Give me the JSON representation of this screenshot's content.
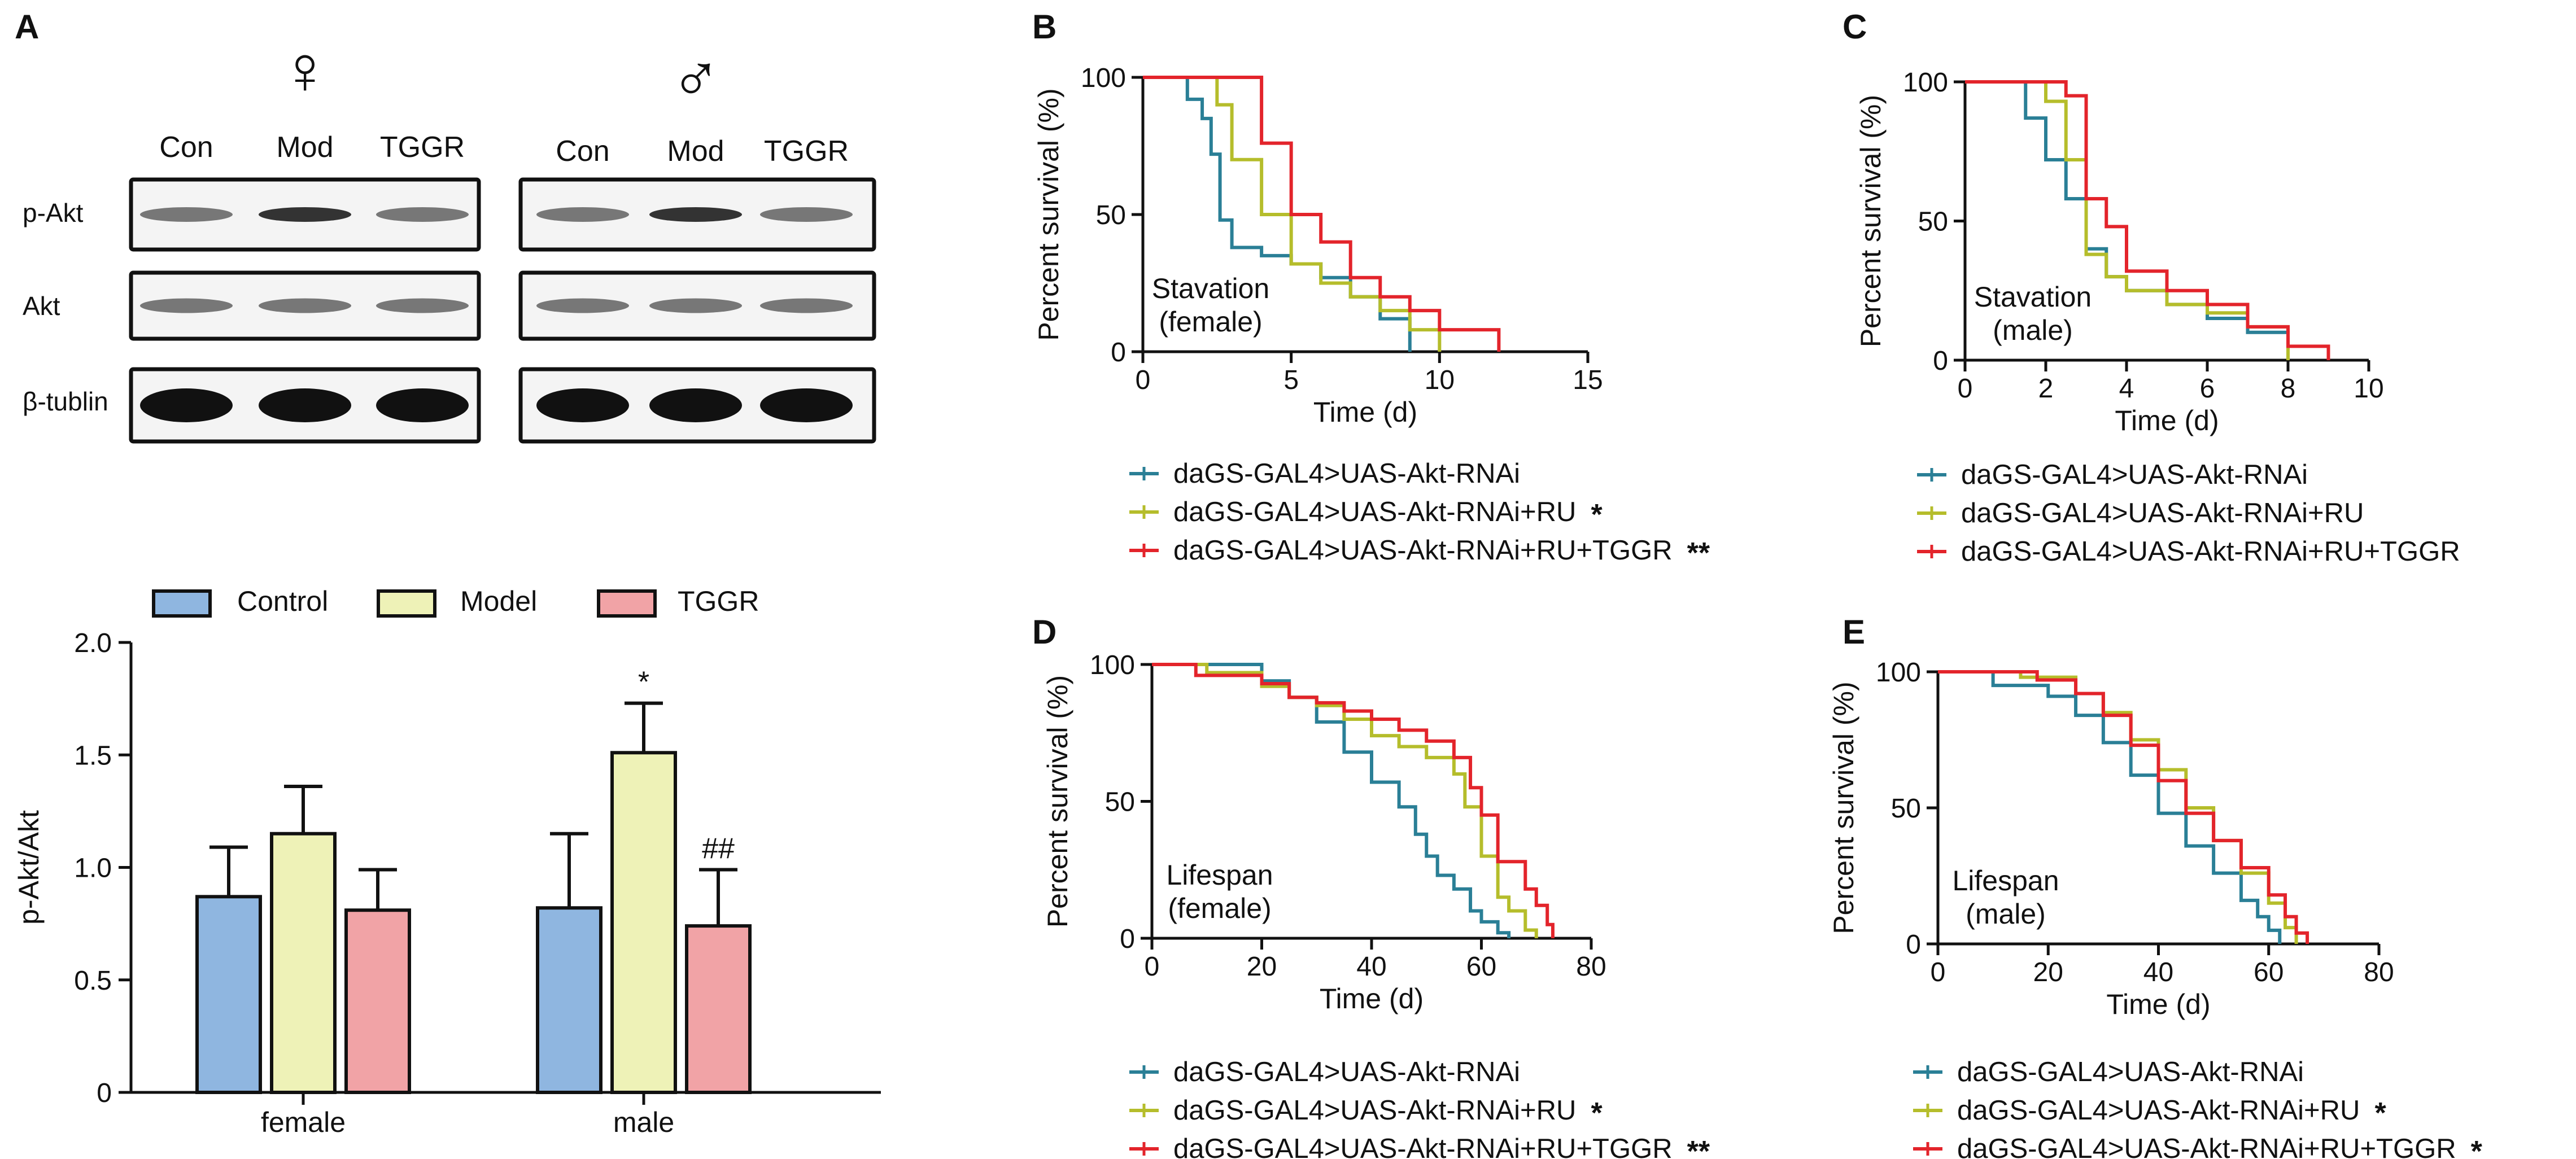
{
  "figure": {
    "panel_labels": [
      "A",
      "B",
      "C",
      "D",
      "E"
    ]
  },
  "colors": {
    "blue": "#2a7f96",
    "yellow": "#b5bd2b",
    "red": "#e3242b",
    "bar_control": "#8fb6e0",
    "bar_model": "#eef2b7",
    "bar_tggr": "#f1a3a6"
  },
  "blot": {
    "female_symbol": "♀",
    "male_symbol": "♂",
    "lanes_female": [
      "Con",
      "Mod",
      "TGGR"
    ],
    "lanes_male": [
      "Con",
      "Mod",
      "TGGR"
    ],
    "rows": [
      "p-Akt",
      "Akt",
      "β-tublin"
    ]
  },
  "chart_data": [
    {
      "id": "A-bar",
      "type": "bar",
      "ylabel": "p-Akt/Akt",
      "ylim": [
        0,
        2.0
      ],
      "yticks": [
        "0",
        "0.5",
        "1.0",
        "1.5",
        "2.0"
      ],
      "categories": [
        "female",
        "male"
      ],
      "legend": [
        "Control",
        "Model",
        "TGGR"
      ],
      "series": [
        {
          "name": "Control",
          "values": [
            0.87,
            0.82
          ],
          "errors": [
            0.22,
            0.33
          ],
          "annotations": [
            "",
            ""
          ]
        },
        {
          "name": "Model",
          "values": [
            1.15,
            1.51
          ],
          "errors": [
            0.21,
            0.22
          ],
          "annotations": [
            "",
            "*"
          ]
        },
        {
          "name": "TGGR",
          "values": [
            0.81,
            0.74
          ],
          "errors": [
            0.18,
            0.25
          ],
          "annotations": [
            "",
            "##"
          ]
        }
      ]
    },
    {
      "id": "B",
      "type": "line",
      "title": "Stavation",
      "subtitle": "(female)",
      "xlabel": "Time (d)",
      "ylabel": "Percent survival (%)",
      "xlim": [
        0,
        15
      ],
      "ylim": [
        0,
        100
      ],
      "xticks": [
        0,
        5,
        10,
        15
      ],
      "yticks": [
        0,
        50,
        100
      ],
      "series": [
        {
          "name": "daGS-GAL4>UAS-Akt-RNAi",
          "sig": "",
          "x": [
            0,
            1.0,
            1.5,
            2.0,
            2.3,
            2.6,
            3.0,
            4.0,
            5.0,
            6.0,
            7.0,
            8.0,
            9.0
          ],
          "y": [
            100,
            100,
            92,
            85,
            72,
            48,
            38,
            35,
            32,
            27,
            20,
            12,
            0
          ]
        },
        {
          "name": "daGS-GAL4>UAS-Akt-RNAi+RU",
          "sig": "*",
          "x": [
            0,
            2.0,
            2.5,
            3.0,
            4.0,
            5.0,
            6.0,
            7.0,
            8.0,
            9.0,
            10.0
          ],
          "y": [
            100,
            100,
            90,
            70,
            50,
            32,
            25,
            20,
            15,
            8,
            0
          ]
        },
        {
          "name": "daGS-GAL4>UAS-Akt-RNAi+RU+TGGR",
          "sig": "**",
          "x": [
            0,
            3.0,
            4.0,
            5.0,
            6.0,
            7.0,
            8.0,
            9.0,
            10.0,
            12.0
          ],
          "y": [
            100,
            100,
            76,
            50,
            40,
            27,
            20,
            15,
            8,
            0
          ]
        }
      ]
    },
    {
      "id": "C",
      "type": "line",
      "title": "Stavation",
      "subtitle": "(male)",
      "xlabel": "Time (d)",
      "ylabel": "Percent survival (%)",
      "xlim": [
        0,
        10
      ],
      "ylim": [
        0,
        100
      ],
      "xticks": [
        0,
        2,
        4,
        6,
        8,
        10
      ],
      "yticks": [
        0,
        50,
        100
      ],
      "series": [
        {
          "name": "daGS-GAL4>UAS-Akt-RNAi",
          "sig": "",
          "x": [
            0,
            1.0,
            1.5,
            2.0,
            2.5,
            3.0,
            3.5,
            4.0,
            5.0,
            6.0,
            7.0,
            8.0
          ],
          "y": [
            100,
            100,
            87,
            72,
            58,
            40,
            30,
            25,
            20,
            15,
            10,
            0
          ]
        },
        {
          "name": "daGS-GAL4>UAS-Akt-RNAi+RU",
          "sig": "",
          "x": [
            0,
            1.5,
            2.0,
            2.5,
            3.0,
            3.5,
            4.0,
            5.0,
            6.0,
            7.0,
            8.0
          ],
          "y": [
            100,
            100,
            93,
            72,
            38,
            30,
            25,
            20,
            17,
            12,
            0
          ]
        },
        {
          "name": "daGS-GAL4>UAS-Akt-RNAi+RU+TGGR",
          "sig": "",
          "x": [
            0,
            2.0,
            2.5,
            3.0,
            3.5,
            4.0,
            5.0,
            6.0,
            7.0,
            8.0,
            9.0
          ],
          "y": [
            100,
            100,
            95,
            58,
            48,
            32,
            25,
            20,
            12,
            5,
            0
          ]
        }
      ]
    },
    {
      "id": "D",
      "type": "line",
      "title": "Lifespan",
      "subtitle": "(female)",
      "xlabel": "Time (d)",
      "ylabel": "Percent survival (%)",
      "xlim": [
        0,
        80
      ],
      "ylim": [
        0,
        100
      ],
      "xticks": [
        0,
        20,
        40,
        60,
        80
      ],
      "yticks": [
        0,
        50,
        100
      ],
      "series": [
        {
          "name": "daGS-GAL4>UAS-Akt-RNAi",
          "sig": "",
          "x": [
            0,
            15,
            20,
            25,
            30,
            35,
            40,
            45,
            48,
            50,
            52,
            55,
            58,
            60,
            63,
            65
          ],
          "y": [
            100,
            100,
            94,
            88,
            79,
            68,
            57,
            48,
            38,
            30,
            23,
            18,
            10,
            6,
            2,
            0
          ]
        },
        {
          "name": "daGS-GAL4>UAS-Akt-RNAi+RU",
          "sig": "*",
          "x": [
            0,
            10,
            20,
            25,
            30,
            35,
            40,
            45,
            50,
            55,
            57,
            60,
            63,
            65,
            68,
            70
          ],
          "y": [
            100,
            97,
            92,
            88,
            85,
            80,
            74,
            70,
            66,
            60,
            48,
            30,
            15,
            10,
            3,
            0
          ]
        },
        {
          "name": "daGS-GAL4>UAS-Akt-RNAi+RU+TGGR",
          "sig": "**",
          "x": [
            0,
            8,
            20,
            25,
            30,
            35,
            40,
            45,
            50,
            55,
            58,
            60,
            63,
            68,
            70,
            72,
            73
          ],
          "y": [
            100,
            96,
            93,
            88,
            86,
            83,
            80,
            76,
            72,
            66,
            55,
            45,
            28,
            18,
            12,
            5,
            0
          ]
        }
      ]
    },
    {
      "id": "E",
      "type": "line",
      "title": "Lifespan",
      "subtitle": "(male)",
      "xlabel": "Time (d)",
      "ylabel": "Percent survival (%)",
      "xlim": [
        0,
        80
      ],
      "ylim": [
        0,
        100
      ],
      "xticks": [
        0,
        20,
        40,
        60,
        80
      ],
      "yticks": [
        0,
        50,
        100
      ],
      "series": [
        {
          "name": "daGS-GAL4>UAS-Akt-RNAi",
          "sig": "",
          "x": [
            0,
            10,
            20,
            25,
            30,
            35,
            40,
            45,
            50,
            55,
            58,
            60,
            62
          ],
          "y": [
            100,
            95,
            91,
            84,
            74,
            62,
            48,
            36,
            26,
            16,
            10,
            5,
            0
          ]
        },
        {
          "name": "daGS-GAL4>UAS-Akt-RNAi+RU",
          "sig": "*",
          "x": [
            0,
            15,
            25,
            30,
            35,
            40,
            45,
            50,
            55,
            60,
            63,
            65
          ],
          "y": [
            100,
            98,
            92,
            85,
            75,
            64,
            50,
            38,
            26,
            15,
            6,
            0
          ]
        },
        {
          "name": "daGS-GAL4>UAS-Akt-RNAi+RU+TGGR",
          "sig": "*",
          "x": [
            0,
            18,
            25,
            30,
            35,
            40,
            45,
            50,
            55,
            60,
            63,
            65,
            67
          ],
          "y": [
            100,
            97,
            92,
            84,
            73,
            60,
            48,
            38,
            28,
            18,
            10,
            4,
            0
          ]
        }
      ]
    }
  ]
}
